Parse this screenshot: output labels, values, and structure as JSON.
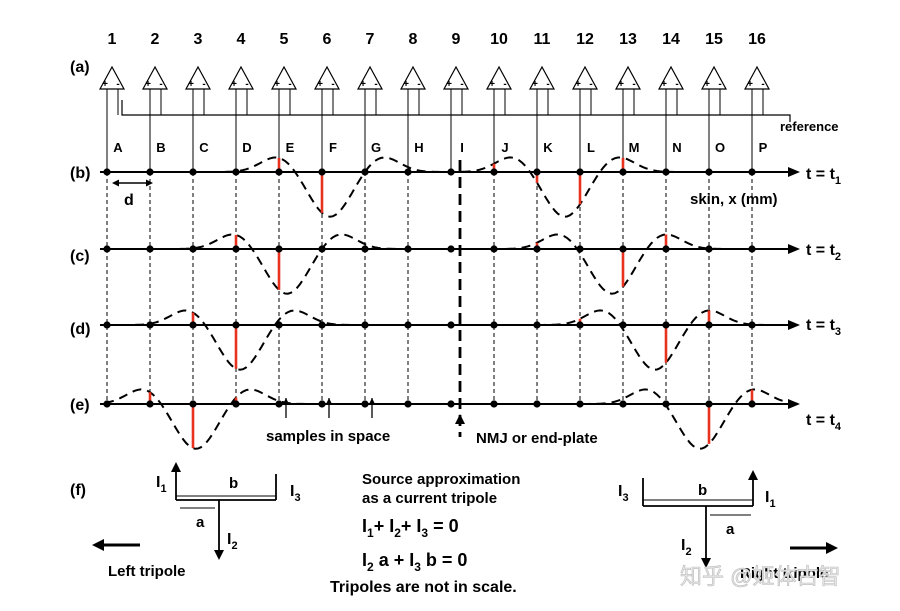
{
  "electrode_numbers": [
    "1",
    "2",
    "3",
    "4",
    "5",
    "6",
    "7",
    "8",
    "9",
    "10",
    "11",
    "12",
    "13",
    "14",
    "15",
    "16"
  ],
  "channel_letters": [
    "A",
    "B",
    "C",
    "D",
    "E",
    "F",
    "G",
    "H",
    "I",
    "J",
    "K",
    "L",
    "M",
    "N",
    "O",
    "P"
  ],
  "row_labels": [
    "(a)",
    "(b)",
    "(c)",
    "(d)",
    "(e)",
    "(f)"
  ],
  "amp_plus": "+",
  "amp_minus": "-",
  "reference_label": "reference",
  "d_label": "d",
  "skin_label": "skin, x (mm)",
  "time_labels": [
    {
      "prefix": "t = t",
      "sub": "1"
    },
    {
      "prefix": "t = t",
      "sub": "2"
    },
    {
      "prefix": "t = t",
      "sub": "3"
    },
    {
      "prefix": "t = t",
      "sub": "4"
    }
  ],
  "samples_label": "samples in space",
  "nmj_label": "NMJ or end-plate",
  "left_tripole": {
    "i1": "I",
    "i1_sub": "1",
    "i2": "I",
    "i2_sub": "2",
    "i3": "I",
    "i3_sub": "3",
    "a": "a",
    "b": "b",
    "caption": "Left tripole"
  },
  "right_tripole": {
    "i1": "I",
    "i1_sub": "1",
    "i2": "I",
    "i2_sub": "2",
    "i3": "I",
    "i3_sub": "3",
    "a": "a",
    "b": "b",
    "caption": "Right tripole"
  },
  "source_text_line1": "Source approximation",
  "source_text_line2": "as a current tripole",
  "equation1": {
    "t1": "I",
    "s1": "1",
    "t2": "+  I",
    "s2": "2",
    "t3": "+  I",
    "s3": "3",
    "t4": "  =  0"
  },
  "equation2": {
    "t1": "I",
    "s1": "2",
    "t2": " a  +  I",
    "s2": "3",
    "t3": " b   = 0"
  },
  "scale_note": "Tripoles are not in scale.",
  "watermark": "知乎 @姬体古智",
  "colors": {
    "sample_line": "#e8321e",
    "ink": "#000000"
  }
}
